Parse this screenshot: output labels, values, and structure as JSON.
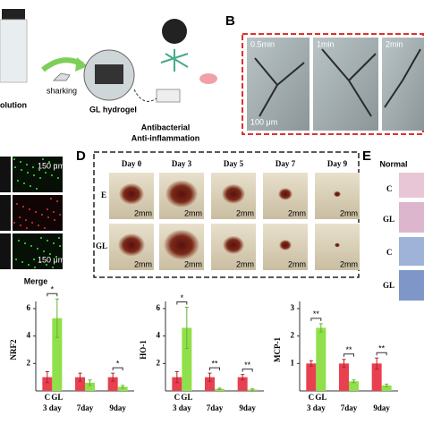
{
  "panel_a": {
    "labels": [
      "olution",
      "sharking",
      "GL hydrogel",
      "Antibacterial",
      "Anti-inflammation"
    ]
  },
  "panel_b": {
    "label": "B",
    "times": [
      "0.5min",
      "1min",
      "2min"
    ],
    "scale": "100 μm"
  },
  "panel_c": {
    "scales": [
      "150 μm",
      "150 μm"
    ],
    "caption": "Merge"
  },
  "panel_d": {
    "label": "D",
    "days": [
      "Day 0",
      "Day 3",
      "Day 5",
      "Day 7",
      "Day 9"
    ],
    "rows": [
      "E",
      "GL"
    ],
    "scale": "2mm"
  },
  "panel_e": {
    "label": "E",
    "header": "Normal",
    "rows": [
      "C",
      "GL",
      "C",
      "GL"
    ]
  },
  "charts": [
    {
      "type": "bar",
      "ylabel": "NRF2",
      "categories": [
        "3 day",
        "7day",
        "9day"
      ],
      "series": [
        {
          "name": "C",
          "color": "#e8404f",
          "values": [
            1,
            1,
            1
          ],
          "errors": [
            0.4,
            0.3,
            0.3
          ]
        },
        {
          "name": "GL",
          "color": "#8fe04a",
          "values": [
            5.3,
            0.6,
            0.3
          ],
          "errors": [
            1.4,
            0.2,
            0.1
          ]
        }
      ],
      "ylim": [
        0,
        6
      ],
      "yticks": [
        2,
        4,
        6
      ],
      "significance": [
        "*",
        null,
        "*"
      ]
    },
    {
      "type": "bar",
      "ylabel": "HO-1",
      "categories": [
        "3 day",
        "7day",
        "9day"
      ],
      "series": [
        {
          "name": "C",
          "color": "#e8404f",
          "values": [
            1,
            1,
            1
          ],
          "errors": [
            0.4,
            0.3,
            0.2
          ]
        },
        {
          "name": "GL",
          "color": "#8fe04a",
          "values": [
            4.6,
            0.15,
            0.1
          ],
          "errors": [
            1.5,
            0.05,
            0.05
          ]
        }
      ],
      "ylim": [
        0,
        6
      ],
      "yticks": [
        2,
        4,
        6
      ],
      "significance": [
        "*",
        "**",
        "**"
      ]
    },
    {
      "type": "bar",
      "ylabel": "MCP-1",
      "categories": [
        "3 day",
        "7day",
        "9day"
      ],
      "series": [
        {
          "name": "C",
          "color": "#e8404f",
          "values": [
            1,
            1,
            1
          ],
          "errors": [
            0.1,
            0.15,
            0.2
          ]
        },
        {
          "name": "GL",
          "color": "#8fe04a",
          "values": [
            2.3,
            0.35,
            0.2
          ],
          "errors": [
            0.15,
            0.05,
            0.05
          ]
        }
      ],
      "ylim": [
        0,
        3
      ],
      "yticks": [
        1,
        2,
        3
      ],
      "significance": [
        "**",
        "**",
        "**"
      ]
    }
  ]
}
